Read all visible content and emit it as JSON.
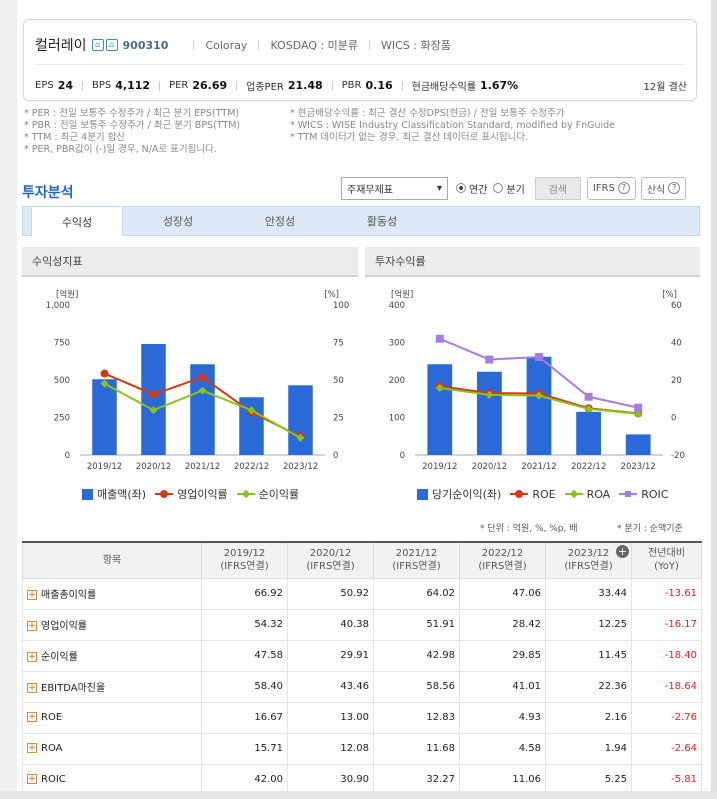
{
  "company": {
    "name": "컬러레이",
    "code": "900310",
    "eng": "Coloray",
    "market": "KOSDAQ : 미분류",
    "wics": "WICS : 화장품"
  },
  "metrics": [
    {
      "k": "EPS",
      "v": "24"
    },
    {
      "k": "BPS",
      "v": "4,112"
    },
    {
      "k": "PER",
      "v": "26.69"
    },
    {
      "k": "업종PER",
      "v": "21.48"
    },
    {
      "k": "PBR",
      "v": "0.16"
    },
    {
      "k": "현금배당수익률",
      "v": "1.67%"
    }
  ],
  "fiscal": "12월 결산",
  "notes": [
    "* PER : 전일 보통주 수정주가 / 최근 분기 EPS(TTM)",
    "* PBR : 전일 보통주 수정주가 / 최근 분기 BPS(TTM)",
    "* TTM : 최근 4분기 합산",
    "* PER, PBR값이 (-)일 경우, N/A로 표기됩니다.",
    "* 현금배당수익률 : 최근 결산 수정DPS(현금) / 전일 보통주 수정주가",
    "* WICS : WISE Industry Classification Standard, modified by FnGuide",
    "* TTM 데이터가 없는 경우, 최근 결산 데이터로 표시됩니다."
  ],
  "section_title": "투자분석",
  "controls": {
    "select": "주재무제표",
    "annual": "연간",
    "quarter": "분기",
    "search": "검색",
    "ifrs": "IFRS",
    "formula": "산식"
  },
  "tabs": [
    "수익성",
    "성장성",
    "안정성",
    "활동성"
  ],
  "panels": {
    "left": "수익성지표",
    "right": "투자수익률"
  },
  "chart_data": [
    {
      "type": "bar",
      "title": "수익성지표",
      "categories": [
        "2019/12",
        "2020/12",
        "2021/12",
        "2022/12",
        "2023/12"
      ],
      "left_axis": {
        "unit": "[억원]",
        "range": [
          0,
          1000
        ],
        "ticks": [
          "0",
          "250",
          "500",
          "750",
          "1,000"
        ]
      },
      "right_axis": {
        "unit": "[%]",
        "range": [
          0,
          100
        ],
        "ticks": [
          "0",
          "25",
          "50",
          "75",
          "100"
        ]
      },
      "series": [
        {
          "name": "매출액(좌)",
          "kind": "bar",
          "axis": "left",
          "color": "#2a6ad8",
          "values": [
            505,
            740,
            605,
            385,
            465
          ]
        },
        {
          "name": "영업이익률",
          "kind": "line",
          "axis": "right",
          "color": "#d23a14",
          "values": [
            54.32,
            40.38,
            51.91,
            28.42,
            12.25
          ]
        },
        {
          "name": "순이익률",
          "kind": "line",
          "axis": "right",
          "color": "#8cc21c",
          "values": [
            47.58,
            29.91,
            42.98,
            29.85,
            11.45
          ]
        }
      ]
    },
    {
      "type": "bar",
      "title": "투자수익률",
      "categories": [
        "2019/12",
        "2020/12",
        "2021/12",
        "2022/12",
        "2023/12"
      ],
      "left_axis": {
        "unit": "[억원]",
        "range": [
          0,
          400
        ],
        "ticks": [
          "0",
          "100",
          "200",
          "300",
          "400"
        ]
      },
      "right_axis": {
        "unit": "[%]",
        "range": [
          -20,
          60
        ],
        "ticks": [
          "-20",
          "0",
          "20",
          "40",
          "60"
        ]
      },
      "series": [
        {
          "name": "당기순이익(좌)",
          "kind": "bar",
          "axis": "left",
          "color": "#2a6ad8",
          "values": [
            242,
            222,
            262,
            115,
            55
          ]
        },
        {
          "name": "ROE",
          "kind": "line",
          "axis": "right",
          "color": "#d23a14",
          "values": [
            16.67,
            13.0,
            12.83,
            4.93,
            2.16
          ]
        },
        {
          "name": "ROA",
          "kind": "line",
          "axis": "right",
          "color": "#8cc21c",
          "values": [
            15.71,
            12.08,
            11.68,
            4.58,
            1.94
          ]
        },
        {
          "name": "ROIC",
          "kind": "line",
          "axis": "right",
          "color": "#a77ce0",
          "values": [
            42.0,
            30.9,
            32.27,
            11.06,
            5.25
          ]
        }
      ]
    }
  ],
  "units_note": "* 단위 : 억원, %, %p, 배",
  "period_note": "* 분기 : 순액기준",
  "table": {
    "headers": [
      {
        "year": "항목",
        "sub": ""
      },
      {
        "year": "2019/12",
        "sub": "(IFRS연결)"
      },
      {
        "year": "2020/12",
        "sub": "(IFRS연결)"
      },
      {
        "year": "2021/12",
        "sub": "(IFRS연결)"
      },
      {
        "year": "2022/12",
        "sub": "(IFRS연결)"
      },
      {
        "year": "2023/12",
        "sub": "(IFRS연결)"
      },
      {
        "year": "전년대비",
        "sub": "(YoY)"
      }
    ],
    "rows": [
      {
        "label": "매출총이익률",
        "values": [
          "66.92",
          "50.92",
          "64.02",
          "47.06",
          "33.44",
          "-13.61"
        ]
      },
      {
        "label": "영업이익률",
        "values": [
          "54.32",
          "40.38",
          "51.91",
          "28.42",
          "12.25",
          "-16.17"
        ]
      },
      {
        "label": "순이익률",
        "values": [
          "47.58",
          "29.91",
          "42.98",
          "29.85",
          "11.45",
          "-18.40"
        ]
      },
      {
        "label": "EBITDA마진율",
        "values": [
          "58.40",
          "43.46",
          "58.56",
          "41.01",
          "22.36",
          "-18.64"
        ]
      },
      {
        "label": "ROE",
        "values": [
          "16.67",
          "13.00",
          "12.83",
          "4.93",
          "2.16",
          "-2.76"
        ]
      },
      {
        "label": "ROA",
        "values": [
          "15.71",
          "12.08",
          "11.68",
          "4.58",
          "1.94",
          "-2.64"
        ]
      },
      {
        "label": "ROIC",
        "values": [
          "42.00",
          "30.90",
          "32.27",
          "11.06",
          "5.25",
          "-5.81"
        ]
      }
    ]
  }
}
